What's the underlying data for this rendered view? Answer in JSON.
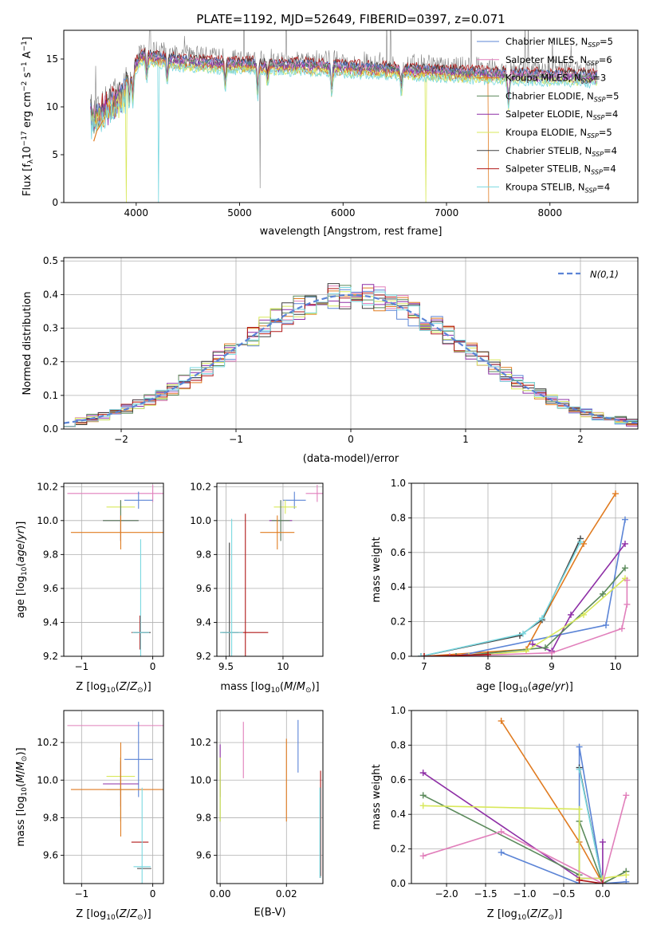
{
  "figure_title": "PLATE=1192, MJD=52649, FIBERID=0397, z=0.071",
  "colors": {
    "Chabrier MILES": "#5b84d6",
    "Salpeter MILES": "#e17fbb",
    "Kroupa MILES": "#e07b20",
    "Chabrier ELODIE": "#5b8a5b",
    "Salpeter ELODIE": "#8e2fa6",
    "Kroupa ELODIE": "#d8e85a",
    "Chabrier STELIB": "#404040",
    "Salpeter STELIB": "#b01818",
    "Kroupa STELIB": "#7ad8e0",
    "data": "#808080"
  },
  "chart_data": [
    {
      "id": "spectrum",
      "type": "line",
      "xlabel": "wavelength [Angstrom, rest frame]",
      "ylabel": "Flux [f_λ 10^-17 erg cm^-2 s^-1 A^-1]",
      "xlim": [
        3300,
        8850
      ],
      "ylim": [
        0,
        18
      ],
      "xticks": [
        "4000",
        "5000",
        "6000",
        "7000",
        "8000"
      ],
      "yticks": [
        "0",
        "5",
        "10",
        "15"
      ],
      "legend_position": "top-right",
      "legend": [
        {
          "model": "Chabrier MILES",
          "label": "Chabrier MILES, N",
          "sub": "SSP",
          "n": "=5"
        },
        {
          "model": "Salpeter MILES",
          "label": "Salpeter MILES, N",
          "sub": "SSP",
          "n": "=6"
        },
        {
          "model": "Kroupa MILES",
          "label": "Kroupa MILES, N",
          "sub": "SSP",
          "n": "=3"
        },
        {
          "model": "Chabrier ELODIE",
          "label": "Chabrier ELODIE, N",
          "sub": "SSP",
          "n": "=5"
        },
        {
          "model": "Salpeter ELODIE",
          "label": "Salpeter ELODIE, N",
          "sub": "SSP",
          "n": "=4"
        },
        {
          "model": "Kroupa ELODIE",
          "label": "Kroupa ELODIE, N",
          "sub": "SSP",
          "n": "=5"
        },
        {
          "model": "Chabrier STELIB",
          "label": "Chabrier STELIB, N",
          "sub": "SSP",
          "n": "=4"
        },
        {
          "model": "Salpeter STELIB",
          "label": "Salpeter STELIB, N",
          "sub": "SSP",
          "n": "=4"
        },
        {
          "model": "Kroupa STELIB",
          "label": "Kroupa STELIB, N",
          "sub": "SSP",
          "n": "=4"
        }
      ],
      "continuum": {
        "x": [
          3580,
          3650,
          3750,
          3850,
          3950,
          4050,
          4200,
          4400,
          4600,
          4800,
          5000,
          5200,
          5400,
          5600,
          5800,
          6000,
          6200,
          6400,
          6600,
          6800,
          7000,
          7200,
          7400,
          7600,
          7800,
          8000,
          8200,
          8400,
          8600,
          8750
        ],
        "y": [
          10.5,
          11.0,
          11.8,
          12.8,
          14.0,
          15.8,
          15.6,
          15.3,
          15.1,
          15.0,
          14.9,
          14.9,
          14.8,
          14.8,
          14.7,
          14.6,
          14.5,
          14.4,
          14.3,
          14.2,
          14.1,
          14.0,
          13.9,
          13.8,
          13.8,
          13.7,
          13.7,
          13.6,
          13.6,
          13.5
        ]
      },
      "dips": [
        {
          "x": 3905,
          "y": 0,
          "model": "Kroupa ELODIE"
        },
        {
          "x": 4215,
          "y": 0,
          "model": "Kroupa STELIB"
        },
        {
          "x": 5200,
          "y": 1.5,
          "model": "data"
        },
        {
          "x": 6800,
          "y": 0,
          "model": "Kroupa ELODIE"
        },
        {
          "x": 7410,
          "y": 0,
          "model": "Kroupa MILES"
        }
      ]
    },
    {
      "id": "residuals",
      "type": "histogram",
      "xlabel": "(data-model)/error",
      "ylabel": "Normed distribution",
      "xlim": [
        -2.5,
        2.5
      ],
      "ylim": [
        0,
        0.51
      ],
      "xticks": [
        "−2",
        "−1",
        "0",
        "1",
        "2"
      ],
      "yticks": [
        "0.0",
        "0.1",
        "0.2",
        "0.3",
        "0.4",
        "0.5"
      ],
      "reference": {
        "label": "N(0,1)",
        "mean": 0,
        "sigma": 1
      },
      "bins": {
        "start": -2.5,
        "width": 0.1,
        "count": 50
      },
      "models": [
        "Chabrier MILES",
        "Salpeter MILES",
        "Kroupa MILES",
        "Chabrier ELODIE",
        "Salpeter ELODIE",
        "Kroupa ELODIE",
        "Chabrier STELIB",
        "Salpeter STELIB",
        "Kroupa STELIB"
      ]
    },
    {
      "id": "age_vs_Z",
      "type": "errorbar",
      "xlabel": "Z [log10(Z/Z⊙)]",
      "ylabel": "age [log10(age/yr)]",
      "xlim": [
        -1.25,
        0.15
      ],
      "ylim": [
        9.2,
        10.22
      ],
      "xticks": [
        -1,
        0
      ],
      "yticks": [
        9.2,
        9.4,
        9.6,
        9.8,
        10.0,
        10.2
      ],
      "points": [
        {
          "model": "Salpeter MILES",
          "x": 0.0,
          "xerr": 1.2,
          "y": 10.16,
          "yerr": 0.05
        },
        {
          "model": "Chabrier MILES",
          "x": -0.2,
          "xerr": 0.2,
          "y": 10.12,
          "yerr": 0.05
        },
        {
          "model": "Kroupa ELODIE",
          "x": -0.45,
          "xerr": 0.2,
          "y": 10.08,
          "yerr": 0.04
        },
        {
          "model": "Salpeter ELODIE",
          "x": -0.45,
          "xerr": 0.25,
          "y": 10.0,
          "yerr": 0.12
        },
        {
          "model": "Chabrier ELODIE",
          "x": -0.45,
          "xerr": 0.25,
          "y": 10.0,
          "yerr": 0.12
        },
        {
          "model": "Kroupa MILES",
          "x": -0.45,
          "xerr": 0.7,
          "y": 9.93,
          "yerr": 0.1
        },
        {
          "model": "Salpeter STELIB",
          "x": -0.18,
          "xerr": 0.12,
          "y": 9.34,
          "yerr": 0.1
        },
        {
          "model": "Chabrier STELIB",
          "x": -0.15,
          "xerr": 0.12,
          "y": 9.34,
          "yerr": 0.0
        },
        {
          "model": "Kroupa STELIB",
          "x": -0.17,
          "xerr": 0.12,
          "y": 9.34,
          "yerr": 0.55
        }
      ]
    },
    {
      "id": "age_vs_mass",
      "type": "errorbar",
      "xlabel": "mass [log10(M/M⊙)]",
      "ylabel": "",
      "xlim": [
        9.42,
        10.35
      ],
      "ylim": [
        9.2,
        10.22
      ],
      "xticks": [
        9.5,
        10.0
      ],
      "yticks": [
        9.2,
        9.4,
        9.6,
        9.8,
        10.0,
        10.2
      ],
      "points": [
        {
          "model": "Salpeter MILES",
          "x": 10.3,
          "xerr": 0.1,
          "y": 10.16,
          "yerr": 0.05
        },
        {
          "model": "Chabrier MILES",
          "x": 10.1,
          "xerr": 0.1,
          "y": 10.12,
          "yerr": 0.05
        },
        {
          "model": "Kroupa ELODIE",
          "x": 10.02,
          "xerr": 0.1,
          "y": 10.08,
          "yerr": 0.04
        },
        {
          "model": "Salpeter ELODIE",
          "x": 9.98,
          "xerr": 0.1,
          "y": 10.0,
          "yerr": 0.12
        },
        {
          "model": "Chabrier ELODIE",
          "x": 9.98,
          "xerr": 0.08,
          "y": 10.0,
          "yerr": 0.12
        },
        {
          "model": "Kroupa MILES",
          "x": 9.95,
          "xerr": 0.15,
          "y": 9.93,
          "yerr": 0.1
        },
        {
          "model": "Salpeter STELIB",
          "x": 9.67,
          "xerr": 0.2,
          "y": 9.34,
          "yerr": 0.7
        },
        {
          "model": "Chabrier STELIB",
          "x": 9.53,
          "xerr": 0.08,
          "y": 9.34,
          "yerr": 0.53
        },
        {
          "model": "Kroupa STELIB",
          "x": 9.55,
          "xerr": 0.1,
          "y": 9.34,
          "yerr": 0.67
        }
      ]
    },
    {
      "id": "weight_vs_age",
      "type": "line",
      "xlabel": "age [log10(age/yr)]",
      "ylabel": "mass weight",
      "xlim": [
        6.8,
        10.35
      ],
      "ylim": [
        0,
        1.0
      ],
      "xticks": [
        7,
        8,
        9,
        10
      ],
      "yticks": [
        0.0,
        0.2,
        0.4,
        0.6,
        0.8,
        1.0
      ],
      "series": [
        {
          "model": "Kroupa MILES",
          "x": [
            7.0,
            8.6,
            9.5,
            10.0
          ],
          "y": [
            0.0,
            0.04,
            0.65,
            0.94
          ]
        },
        {
          "model": "Chabrier STELIB",
          "x": [
            6.95,
            8.5,
            8.85,
            9.45
          ],
          "y": [
            0.0,
            0.12,
            0.21,
            0.68
          ]
        },
        {
          "model": "Kroupa STELIB",
          "x": [
            6.95,
            8.55,
            8.85,
            9.45
          ],
          "y": [
            0.0,
            0.13,
            0.22,
            0.66
          ]
        },
        {
          "model": "Chabrier MILES",
          "x": [
            7.5,
            9.85,
            10.15
          ],
          "y": [
            0.0,
            0.18,
            0.79
          ]
        },
        {
          "model": "Salpeter ELODIE",
          "x": [
            8.7,
            9.0,
            9.3,
            10.15
          ],
          "y": [
            0.07,
            0.03,
            0.24,
            0.65
          ]
        },
        {
          "model": "Chabrier ELODIE",
          "x": [
            7.5,
            8.9,
            9.8,
            10.15
          ],
          "y": [
            0.0,
            0.05,
            0.36,
            0.51
          ]
        },
        {
          "model": "Kroupa ELODIE",
          "x": [
            7.7,
            8.6,
            9.5,
            10.15
          ],
          "y": [
            0.0,
            0.03,
            0.24,
            0.45
          ]
        },
        {
          "model": "Salpeter MILES",
          "x": [
            7.4,
            9.0,
            10.1,
            10.18,
            10.18
          ],
          "y": [
            0.0,
            0.02,
            0.16,
            0.3,
            0.44
          ]
        },
        {
          "model": "Salpeter STELIB",
          "x": [
            7.0,
            8.0
          ],
          "y": [
            0.0,
            0.01
          ]
        }
      ]
    },
    {
      "id": "mass_vs_Z",
      "type": "errorbar",
      "xlabel": "Z [log10(Z/Z⊙)]",
      "ylabel": "mass [log10(M/M⊙)]",
      "xlim": [
        -1.25,
        0.15
      ],
      "ylim": [
        9.45,
        10.37
      ],
      "xticks": [
        -1,
        0
      ],
      "yticks": [
        9.6,
        9.8,
        10.0,
        10.2
      ],
      "points": [
        {
          "model": "Salpeter MILES",
          "x": 0.0,
          "xerr": 1.2,
          "y": 10.29,
          "yerr": 0.0
        },
        {
          "model": "Chabrier MILES",
          "x": -0.2,
          "xerr": 0.2,
          "y": 10.11,
          "yerr": 0.2
        },
        {
          "model": "Kroupa ELODIE",
          "x": -0.45,
          "xerr": 0.2,
          "y": 10.02,
          "yerr": 0.1
        },
        {
          "model": "Salpeter ELODIE",
          "x": -0.45,
          "xerr": 0.25,
          "y": 9.98,
          "yerr": 0.12
        },
        {
          "model": "Chabrier ELODIE",
          "x": -0.45,
          "xerr": 0.2,
          "y": 9.95,
          "yerr": 0.17
        },
        {
          "model": "Kroupa MILES",
          "x": -0.45,
          "xerr": 0.7,
          "y": 9.95,
          "yerr": 0.25
        },
        {
          "model": "Salpeter STELIB",
          "x": -0.18,
          "xerr": 0.12,
          "y": 9.67,
          "yerr": 0.0
        },
        {
          "model": "Chabrier STELIB",
          "x": -0.12,
          "xerr": 0.1,
          "y": 9.53,
          "yerr": 0.0
        },
        {
          "model": "Kroupa STELIB",
          "x": -0.15,
          "xerr": 0.12,
          "y": 9.54,
          "yerr": 0.42
        }
      ]
    },
    {
      "id": "mass_vs_ebv",
      "type": "errorbar",
      "xlabel": "E(B-V)",
      "ylabel": "",
      "xlim": [
        -0.001,
        0.031
      ],
      "ylim": [
        9.45,
        10.37
      ],
      "xticks": [
        "0.00",
        "0.02"
      ],
      "yticks": [
        9.6,
        9.8,
        10.0,
        10.2
      ],
      "points": [
        {
          "model": "Salpeter ELODIE",
          "x": 0.0,
          "xerr": 0,
          "y": 10.05,
          "yerr": 0.14
        },
        {
          "model": "Chabrier ELODIE",
          "x": 0.0,
          "xerr": 0,
          "y": 9.95,
          "yerr": 0.17
        },
        {
          "model": "Kroupa ELODIE",
          "x": 0.0,
          "xerr": 0,
          "y": 9.95,
          "yerr": 0.17
        },
        {
          "model": "Salpeter MILES",
          "x": 0.007,
          "xerr": 0,
          "y": 10.16,
          "yerr": 0.15
        },
        {
          "model": "Kroupa MILES",
          "x": 0.02,
          "xerr": 0,
          "y": 10.0,
          "yerr": 0.22
        },
        {
          "model": "Chabrier MILES",
          "x": 0.0235,
          "xerr": 0,
          "y": 10.18,
          "yerr": 0.14
        },
        {
          "model": "Salpeter STELIB",
          "x": 0.0303,
          "xerr": 0,
          "y": 9.77,
          "yerr": 0.28
        },
        {
          "model": "Chabrier STELIB",
          "x": 0.0302,
          "xerr": 0,
          "y": 9.72,
          "yerr": 0.24
        },
        {
          "model": "Kroupa STELIB",
          "x": 0.0301,
          "xerr": 0,
          "y": 9.72,
          "yerr": 0.24
        }
      ]
    },
    {
      "id": "weight_vs_Z",
      "type": "line",
      "xlabel": "Z [log10(Z/Z⊙)]",
      "ylabel": "mass weight",
      "xlim": [
        -2.45,
        0.45
      ],
      "ylim": [
        0,
        1.0
      ],
      "xticks": [
        "−2.0",
        "−1.5",
        "−1.0",
        "−0.5",
        "0.0"
      ],
      "yticks": [
        0.0,
        0.2,
        0.4,
        0.6,
        0.8,
        1.0
      ],
      "series": [
        {
          "model": "Kroupa MILES",
          "x": [
            -1.3,
            -0.3,
            0.0
          ],
          "y": [
            0.94,
            0.24,
            0.0
          ]
        },
        {
          "model": "Chabrier MILES",
          "x": [
            -1.3,
            -0.3,
            -0.3,
            0.0,
            0.3
          ],
          "y": [
            0.18,
            0.0,
            0.79,
            0.0,
            0.01
          ]
        },
        {
          "model": "Chabrier STELIB",
          "x": [
            -0.3,
            0.0,
            0.3
          ],
          "y": [
            0.67,
            0.0,
            0.07
          ]
        },
        {
          "model": "Kroupa STELIB",
          "x": [
            -0.3,
            0.0
          ],
          "y": [
            0.66,
            0.0
          ]
        },
        {
          "model": "Salpeter ELODIE",
          "x": [
            -2.3,
            -0.3,
            0.0,
            0.0
          ],
          "y": [
            0.64,
            0.03,
            0.03,
            0.24
          ]
        },
        {
          "model": "Chabrier ELODIE",
          "x": [
            -2.3,
            -0.3,
            -0.3,
            0.0,
            0.3
          ],
          "y": [
            0.51,
            0.05,
            0.36,
            0.0,
            0.07
          ]
        },
        {
          "model": "Kroupa ELODIE",
          "x": [
            -2.3,
            -0.3,
            -0.3,
            0.0,
            0.3
          ],
          "y": [
            0.45,
            0.43,
            0.03,
            0.03,
            0.05
          ]
        },
        {
          "model": "Salpeter MILES",
          "x": [
            -2.3,
            -1.3,
            0.0,
            0.3
          ],
          "y": [
            0.16,
            0.3,
            0.0,
            0.51
          ]
        },
        {
          "model": "Salpeter STELIB",
          "x": [
            -0.3,
            0.0
          ],
          "y": [
            0.02,
            0.0
          ]
        }
      ]
    }
  ]
}
